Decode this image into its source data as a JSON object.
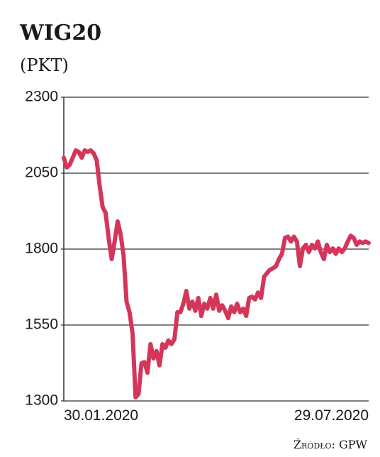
{
  "chart_data": {
    "type": "line",
    "title": "WIG20",
    "subtitle": "(PKT)",
    "source": "Źródło: GPW",
    "color": "#d4365a",
    "grid": true,
    "ylim": [
      1300,
      2300
    ],
    "yticks": [
      1300,
      1550,
      1800,
      2050,
      2300
    ],
    "categories": [
      "30.01.2020",
      null,
      null,
      null,
      null,
      null,
      null,
      null,
      null,
      null,
      null,
      null,
      null,
      null,
      null,
      null,
      null,
      null,
      null,
      null,
      null,
      null,
      null,
      null,
      null,
      null,
      null,
      null,
      null,
      null,
      null,
      null,
      null,
      null,
      null,
      null,
      null,
      null,
      null,
      null,
      null,
      null,
      null,
      null,
      null,
      null,
      null,
      null,
      null,
      null,
      null,
      null,
      null,
      null,
      null,
      null,
      null,
      null,
      null,
      null,
      null,
      null,
      null,
      null,
      null,
      null,
      null,
      null,
      null,
      null,
      null,
      null,
      null,
      null,
      null,
      null,
      null,
      null,
      null,
      null,
      null,
      null,
      null,
      null,
      null,
      null,
      null,
      null,
      null,
      null,
      null,
      null,
      null,
      null,
      null,
      null,
      null,
      null,
      null,
      null,
      null,
      null,
      "29.07.2020"
    ],
    "values": [
      2101,
      2069,
      2078,
      2101,
      2125,
      2120,
      2101,
      2125,
      2120,
      2125,
      2115,
      2092,
      2008,
      1938,
      1919,
      1837,
      1767,
      1825,
      1891,
      1849,
      1779,
      1627,
      1592,
      1522,
      1312,
      1323,
      1424,
      1428,
      1393,
      1487,
      1440,
      1464,
      1417,
      1487,
      1475,
      1499,
      1487,
      1503,
      1592,
      1592,
      1620,
      1662,
      1604,
      1627,
      1597,
      1639,
      1580,
      1620,
      1604,
      1639,
      1604,
      1650,
      1597,
      1615,
      1597,
      1573,
      1611,
      1592,
      1620,
      1592,
      1604,
      1580,
      1639,
      1643,
      1634,
      1657,
      1639,
      1709,
      1721,
      1732,
      1737,
      1744,
      1767,
      1784,
      1837,
      1841,
      1825,
      1841,
      1825,
      1744,
      1802,
      1814,
      1790,
      1814,
      1802,
      1825,
      1790,
      1767,
      1814,
      1790,
      1802,
      1784,
      1802,
      1790,
      1802,
      1825,
      1844,
      1837,
      1814,
      1825,
      1820,
      1825,
      1820
    ]
  }
}
